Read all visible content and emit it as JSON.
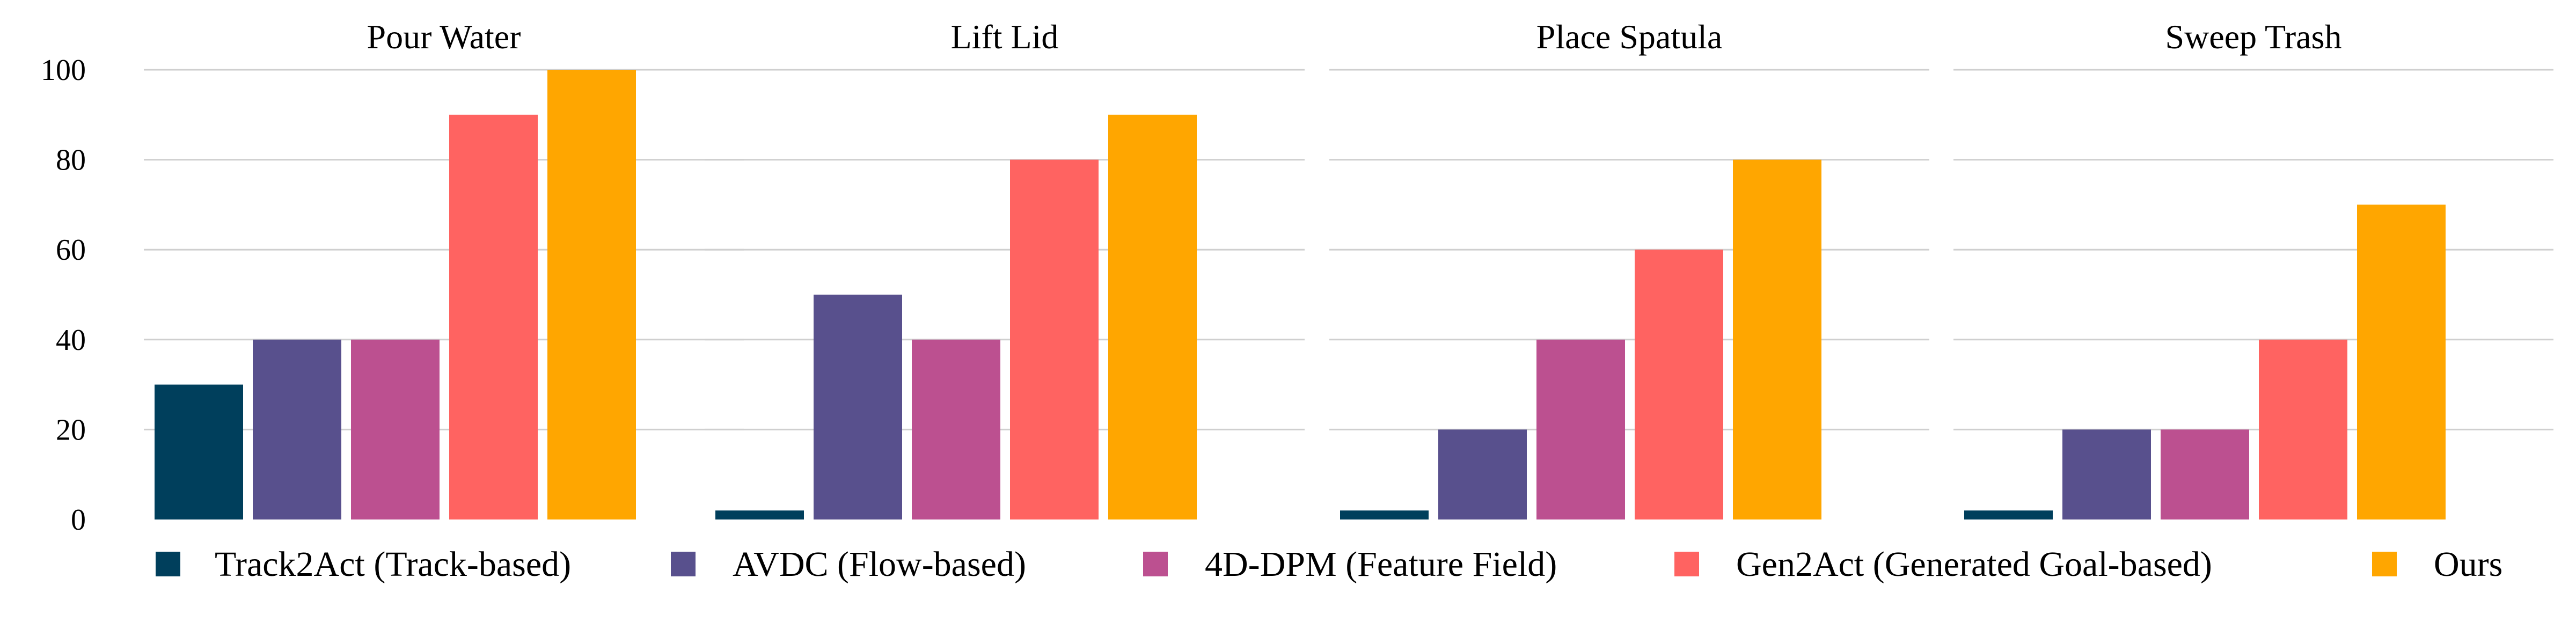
{
  "chart_data": {
    "type": "bar",
    "panels": [
      {
        "title": "Pour Water",
        "values": [
          30,
          40,
          40,
          90,
          100
        ]
      },
      {
        "title": "Lift Lid",
        "values": [
          2,
          50,
          40,
          80,
          90
        ]
      },
      {
        "title": "Place Spatula",
        "values": [
          2,
          20,
          40,
          60,
          80
        ]
      },
      {
        "title": "Sweep Trash",
        "values": [
          2,
          20,
          20,
          40,
          70
        ]
      }
    ],
    "series": [
      {
        "name": "Track2Act (Track-based)",
        "color": "#003f5c"
      },
      {
        "name": "AVDC (Flow-based)",
        "color": "#58508d"
      },
      {
        "name": "4D-DPM (Feature Field)",
        "color": "#bc5090"
      },
      {
        "name": "Gen2Act (Generated Goal-based)",
        "color": "#ff6361"
      },
      {
        "name": "Ours",
        "color": "#ffa600"
      }
    ],
    "yticks": [
      0,
      20,
      40,
      60,
      80,
      100
    ],
    "ylim": [
      0,
      100
    ],
    "grid": true,
    "legend_position": "bottom"
  }
}
